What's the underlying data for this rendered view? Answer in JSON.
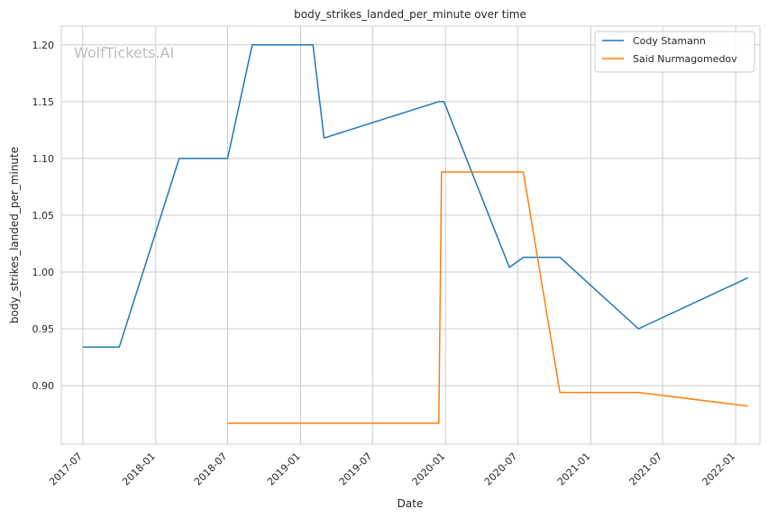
{
  "chart_data": {
    "type": "line",
    "title": "body_strikes_landed_per_minute over time",
    "xlabel": "Date",
    "ylabel": "body_strikes_landed_per_minute",
    "watermark": "WolfTickets.AI",
    "x_ticks": [
      "2017-07",
      "2018-01",
      "2018-07",
      "2019-01",
      "2019-07",
      "2020-01",
      "2020-07",
      "2021-01",
      "2021-07",
      "2022-01"
    ],
    "y_ticks": [
      "0.90",
      "0.95",
      "1.00",
      "1.05",
      "1.10",
      "1.15",
      "1.20"
    ],
    "xlim": [
      "2017-05-08",
      "2022-03-03"
    ],
    "ylim": [
      0.8485,
      1.2165
    ],
    "grid": true,
    "legend_position": "top-right",
    "series": [
      {
        "name": "Cody Stamann",
        "color": "#1f77b4",
        "points": [
          [
            "2017-07-01",
            0.934
          ],
          [
            "2017-10-01",
            0.934
          ],
          [
            "2018-03-01",
            1.1
          ],
          [
            "2018-07-01",
            1.1
          ],
          [
            "2018-09-01",
            1.2
          ],
          [
            "2019-02-01",
            1.2
          ],
          [
            "2019-03-01",
            1.118
          ],
          [
            "2019-12-15",
            1.15
          ],
          [
            "2019-12-28",
            1.15
          ],
          [
            "2020-06-10",
            1.004
          ],
          [
            "2020-07-15",
            1.013
          ],
          [
            "2020-10-15",
            1.013
          ],
          [
            "2021-05-01",
            0.95
          ],
          [
            "2022-02-01",
            0.995
          ]
        ]
      },
      {
        "name": "Said Nurmagomedov",
        "color": "#ff7f0e",
        "points": [
          [
            "2018-07-01",
            0.867
          ],
          [
            "2019-12-15",
            0.867
          ],
          [
            "2019-12-22",
            1.088
          ],
          [
            "2020-07-15",
            1.088
          ],
          [
            "2020-10-15",
            0.894
          ],
          [
            "2021-05-01",
            0.894
          ],
          [
            "2022-02-01",
            0.882
          ]
        ]
      }
    ]
  }
}
